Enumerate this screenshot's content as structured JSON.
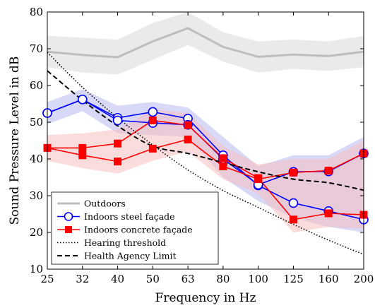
{
  "chart_data": {
    "type": "line",
    "title": "",
    "xlabel": "Frequency in Hz",
    "ylabel": "Sound Pressure Level in dB",
    "categories": [
      "25",
      "32",
      "40",
      "50",
      "63",
      "80",
      "100",
      "125",
      "160",
      "200"
    ],
    "ylim": [
      10,
      80
    ],
    "yticks": [
      10,
      20,
      30,
      40,
      50,
      60,
      70,
      80
    ],
    "legend_position": "bottom-left",
    "grid": false,
    "series": [
      {
        "name": "Outdoors",
        "style": "solid-thick",
        "color": "#bdbdbd",
        "band_color": "#d9d9d9",
        "values": [
          69.2,
          68.3,
          67.7,
          72.0,
          75.6,
          70.5,
          67.8,
          68.4,
          68.0,
          69.2
        ],
        "upper": [
          73.5,
          73.0,
          72.5,
          77.0,
          80.0,
          74.5,
          72.0,
          72.5,
          72.0,
          73.5
        ],
        "lower": [
          65.0,
          63.5,
          63.0,
          67.0,
          71.0,
          66.5,
          63.5,
          64.5,
          64.0,
          65.0
        ]
      },
      {
        "name": "Indoors steel façade",
        "style": "solid-open-circle",
        "color": "#0000ff",
        "band_color": "#b8b8f0",
        "lines": [
          [
            52.5,
            56.2,
            51.2,
            52.8,
            51.0,
            41.0,
            32.8,
            28.0,
            25.8,
            23.5
          ],
          [
            52.5,
            56.2,
            50.5,
            49.8,
            49.3,
            40.0,
            33.0,
            36.5,
            36.6,
            41.5
          ]
        ],
        "upper": [
          55.5,
          59.0,
          54.5,
          55.5,
          54.0,
          46.0,
          38.0,
          41.0,
          41.0,
          46.0
        ],
        "lower": [
          49.5,
          53.0,
          47.0,
          46.5,
          46.0,
          35.0,
          28.5,
          24.0,
          21.5,
          20.0
        ]
      },
      {
        "name": "Indoors concrete façade",
        "style": "solid-filled-square",
        "color": "#ff0000",
        "band_color": "#f5c0c0",
        "lines": [
          [
            43.0,
            43.0,
            44.2,
            50.5,
            49.2,
            40.2,
            34.8,
            23.5,
            25.2,
            24.8
          ],
          [
            43.0,
            41.0,
            39.3,
            42.8,
            45.3,
            38.0,
            34.5,
            36.3,
            36.8,
            41.5
          ]
        ],
        "upper": [
          46.5,
          47.0,
          48.0,
          53.5,
          52.5,
          43.5,
          38.5,
          40.0,
          40.0,
          45.0
        ],
        "lower": [
          39.5,
          37.5,
          36.0,
          39.5,
          42.0,
          34.5,
          30.5,
          20.0,
          21.5,
          21.0
        ]
      },
      {
        "name": "Hearing threshold",
        "style": "dotted",
        "color": "#000000",
        "values": [
          69.0,
          59.5,
          51.2,
          43.8,
          37.0,
          31.4,
          26.8,
          22.2,
          17.9,
          14.0
        ]
      },
      {
        "name": "Health Agency Limit",
        "style": "dashed",
        "color": "#000000",
        "values": [
          64.0,
          56.0,
          49.0,
          43.5,
          41.5,
          39.0,
          36.5,
          34.5,
          33.5,
          31.5
        ]
      }
    ]
  }
}
